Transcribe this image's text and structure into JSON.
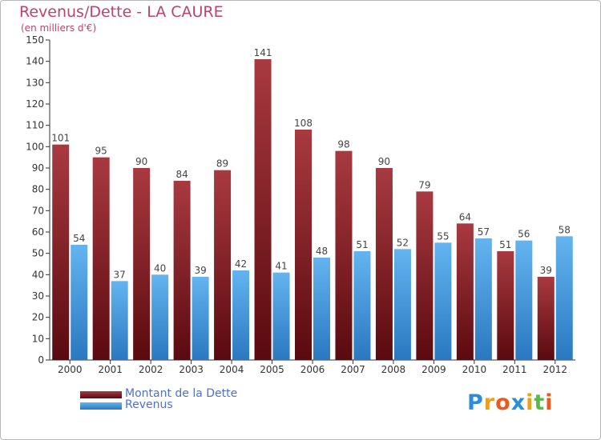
{
  "colors": {
    "dette_dark": "#5a0a0f",
    "dette_light": "#a83a40",
    "revenus_dark": "#2a78c0",
    "revenus_light": "#63b4f0",
    "title": "#c0406f",
    "legend_text": "#4a6fd8"
  },
  "chart_data": {
    "type": "bar",
    "title": "Revenus/Dette - LA CAURE",
    "subtitle": "(en milliers d'€)",
    "categories": [
      "2000",
      "2001",
      "2002",
      "2003",
      "2004",
      "2005",
      "2006",
      "2007",
      "2008",
      "2009",
      "2010",
      "2011",
      "2012"
    ],
    "series": [
      {
        "name": "Montant de la Dette",
        "values": [
          101,
          95,
          90,
          84,
          89,
          141,
          108,
          98,
          90,
          79,
          64,
          51,
          39
        ]
      },
      {
        "name": "Revenus",
        "values": [
          54,
          37,
          40,
          39,
          42,
          41,
          48,
          51,
          52,
          55,
          57,
          56,
          58
        ]
      }
    ],
    "ylim": [
      0,
      150
    ],
    "yticks": [
      0,
      10,
      20,
      30,
      40,
      50,
      60,
      70,
      80,
      90,
      100,
      110,
      120,
      130,
      140,
      150
    ],
    "xlabel": "",
    "ylabel": "",
    "grid": false,
    "legend": "bottom-left"
  },
  "logo": {
    "letters": [
      "P",
      "r",
      "o",
      "x",
      "i",
      "t",
      "i"
    ],
    "colors": [
      "#2a8fd8",
      "#e8a020",
      "#e85a20",
      "#2a8fd8",
      "#e8a020",
      "#58b848",
      "#e85a20"
    ]
  }
}
